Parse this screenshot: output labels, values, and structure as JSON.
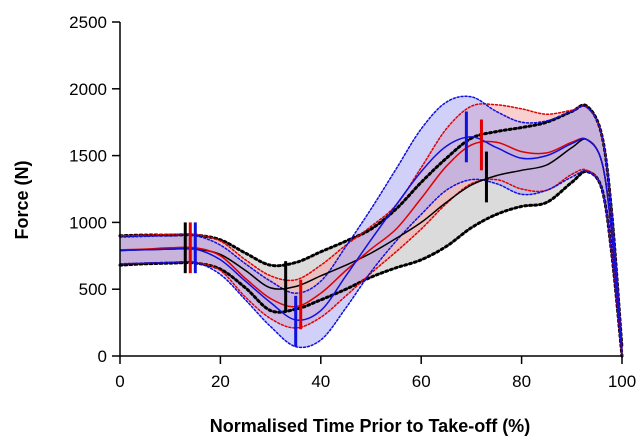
{
  "chart_data": {
    "type": "line",
    "title": "",
    "xlabel": "Normalised Time Prior to Take-off (%)",
    "ylabel": "Force (N)",
    "xlim": [
      0,
      100
    ],
    "ylim": [
      0,
      2500
    ],
    "xticks": [
      0,
      20,
      40,
      60,
      80,
      100
    ],
    "yticks": [
      0,
      500,
      1000,
      1500,
      2000,
      2500
    ],
    "grid": false,
    "legend": "none",
    "series": [
      {
        "color": "#000000",
        "band_fill": "#bdbdbd",
        "x": [
          0,
          5,
          10,
          15,
          20,
          25,
          30,
          35,
          40,
          45,
          50,
          55,
          60,
          65,
          70,
          75,
          80,
          85,
          90,
          93,
          96,
          98,
          100
        ],
        "mean": [
          790,
          795,
          800,
          800,
          760,
          640,
          510,
          520,
          600,
          680,
          770,
          880,
          1000,
          1150,
          1280,
          1350,
          1390,
          1430,
          1560,
          1620,
          1450,
          900,
          30
        ],
        "upper": [
          900,
          905,
          905,
          905,
          870,
          770,
          680,
          700,
          780,
          860,
          950,
          1100,
          1300,
          1480,
          1630,
          1680,
          1710,
          1750,
          1830,
          1870,
          1650,
          1050,
          60
        ],
        "lower": [
          680,
          690,
          695,
          695,
          650,
          510,
          340,
          350,
          420,
          500,
          590,
          660,
          720,
          820,
          960,
          1060,
          1120,
          1150,
          1300,
          1380,
          1250,
          750,
          0
        ],
        "markers": [
          {
            "x": 13,
            "low": 620,
            "high": 1000
          },
          {
            "x": 33,
            "low": 340,
            "high": 710
          },
          {
            "x": 73,
            "low": 1150,
            "high": 1530
          }
        ]
      },
      {
        "color": "#e00000",
        "band_fill": "#f6a8a8",
        "x": [
          0,
          5,
          10,
          15,
          20,
          25,
          30,
          35,
          40,
          45,
          50,
          55,
          60,
          65,
          70,
          75,
          80,
          85,
          90,
          93,
          96,
          98,
          100
        ],
        "mean": [
          795,
          800,
          810,
          810,
          750,
          580,
          430,
          370,
          470,
          640,
          800,
          950,
          1180,
          1420,
          1580,
          1600,
          1530,
          1520,
          1600,
          1620,
          1450,
          900,
          30
        ],
        "upper": [
          900,
          905,
          910,
          910,
          860,
          720,
          600,
          570,
          680,
          830,
          970,
          1130,
          1410,
          1700,
          1870,
          1880,
          1850,
          1810,
          1840,
          1860,
          1650,
          1050,
          60
        ],
        "lower": [
          690,
          695,
          700,
          700,
          640,
          440,
          280,
          210,
          290,
          450,
          620,
          780,
          950,
          1140,
          1290,
          1320,
          1250,
          1240,
          1360,
          1390,
          1250,
          750,
          0
        ],
        "markers": [
          {
            "x": 14,
            "low": 620,
            "high": 1000
          },
          {
            "x": 36,
            "low": 200,
            "high": 570
          },
          {
            "x": 72,
            "low": 1390,
            "high": 1770
          }
        ]
      },
      {
        "color": "#1010e0",
        "band_fill": "#a9a9f2",
        "x": [
          0,
          5,
          10,
          15,
          20,
          25,
          30,
          35,
          40,
          45,
          50,
          55,
          60,
          65,
          70,
          75,
          80,
          85,
          90,
          93,
          96,
          98,
          100
        ],
        "mean": [
          790,
          795,
          800,
          800,
          720,
          560,
          400,
          270,
          340,
          600,
          870,
          1130,
          1380,
          1570,
          1640,
          1560,
          1480,
          1500,
          1590,
          1620,
          1450,
          900,
          30
        ],
        "upper": [
          890,
          895,
          900,
          900,
          830,
          690,
          560,
          470,
          560,
          820,
          1100,
          1400,
          1700,
          1900,
          1940,
          1830,
          1750,
          1760,
          1830,
          1860,
          1650,
          1050,
          60
        ],
        "lower": [
          690,
          695,
          700,
          700,
          610,
          420,
          220,
          70,
          120,
          360,
          630,
          860,
          1060,
          1240,
          1320,
          1290,
          1210,
          1240,
          1340,
          1380,
          1250,
          750,
          0
        ],
        "markers": [
          {
            "x": 15,
            "low": 620,
            "high": 1000
          },
          {
            "x": 35,
            "low": 70,
            "high": 450
          },
          {
            "x": 69,
            "low": 1450,
            "high": 1830
          }
        ]
      }
    ]
  }
}
